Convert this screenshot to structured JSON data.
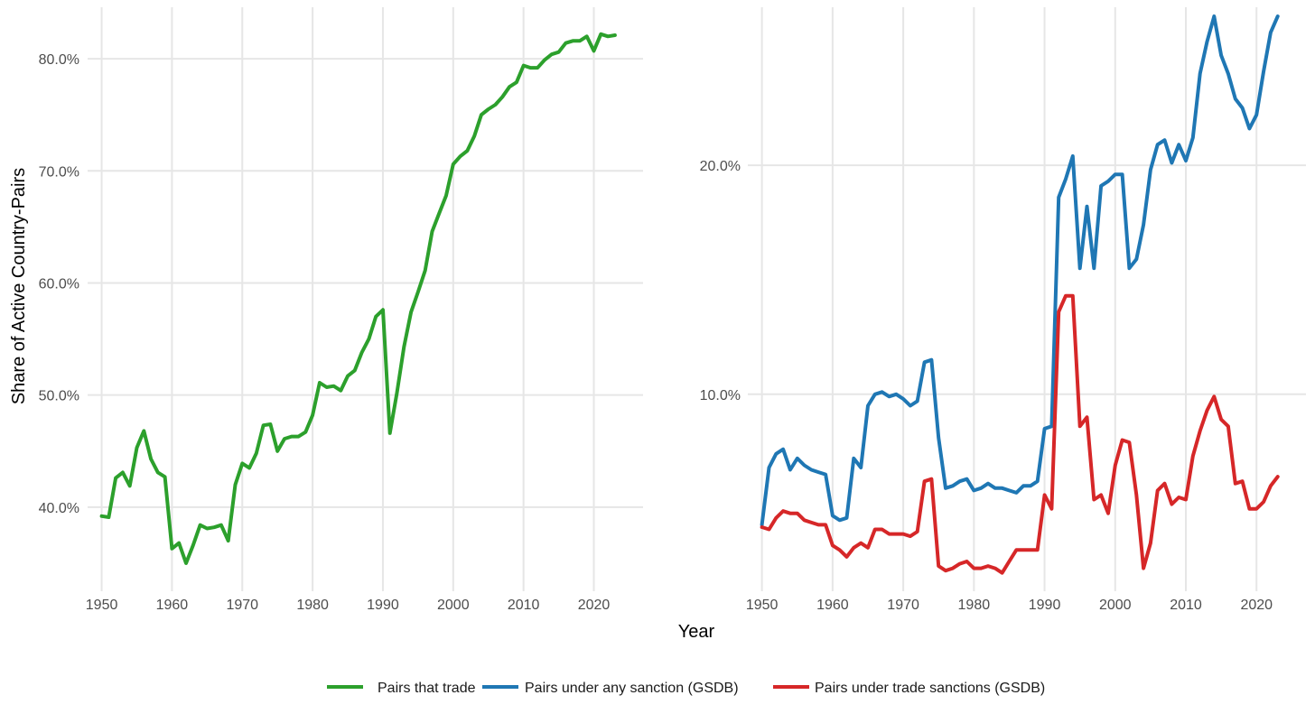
{
  "chart_data": [
    {
      "type": "line",
      "panel": "left",
      "xlabel": "Year",
      "ylabel": "Share of Active Country-Pairs",
      "xlim": [
        1948,
        2027
      ],
      "ylim": [
        32.5,
        84.6
      ],
      "x_ticks": [
        1950,
        1960,
        1970,
        1980,
        1990,
        2000,
        2010,
        2020
      ],
      "x_tick_labels": [
        "1950",
        "1960",
        "1970",
        "1980",
        "1990",
        "2000",
        "2010",
        "2020"
      ],
      "y_ticks": [
        40,
        50,
        60,
        70,
        80
      ],
      "y_tick_labels": [
        "40.0%",
        "50.0%",
        "60.0%",
        "70.0%",
        "80.0%"
      ],
      "grid": true,
      "series": [
        {
          "name": "Pairs that trade",
          "color": "#2ca02c",
          "x": [
            1950,
            1951,
            1952,
            1953,
            1954,
            1955,
            1956,
            1957,
            1958,
            1959,
            1960,
            1961,
            1962,
            1963,
            1964,
            1965,
            1966,
            1967,
            1968,
            1969,
            1970,
            1971,
            1972,
            1973,
            1974,
            1975,
            1976,
            1977,
            1978,
            1979,
            1980,
            1981,
            1982,
            1983,
            1984,
            1985,
            1986,
            1987,
            1988,
            1989,
            1990,
            1991,
            1992,
            1993,
            1994,
            1995,
            1996,
            1997,
            1998,
            1999,
            2000,
            2001,
            2002,
            2003,
            2004,
            2005,
            2006,
            2007,
            2008,
            2009,
            2010,
            2011,
            2012,
            2013,
            2014,
            2015,
            2016,
            2017,
            2018,
            2019,
            2020,
            2021,
            2022,
            2023
          ],
          "y": [
            39.2,
            39.1,
            42.6,
            43.1,
            41.9,
            45.3,
            46.8,
            44.3,
            43.1,
            42.7,
            36.3,
            36.8,
            35.0,
            36.6,
            38.4,
            38.1,
            38.2,
            38.4,
            37.0,
            42.0,
            43.9,
            43.5,
            44.8,
            47.3,
            47.4,
            45.0,
            46.1,
            46.3,
            46.3,
            46.7,
            48.2,
            51.1,
            50.7,
            50.8,
            50.4,
            51.7,
            52.2,
            53.8,
            55.0,
            57.0,
            57.6,
            46.6,
            50.2,
            54.3,
            57.4,
            59.2,
            61.1,
            64.6,
            66.2,
            67.8,
            70.6,
            71.3,
            71.8,
            73.1,
            75.0,
            75.5,
            75.9,
            76.6,
            77.5,
            77.9,
            79.4,
            79.2,
            79.2,
            79.9,
            80.4,
            80.6,
            81.4,
            81.6,
            81.6,
            82.0,
            80.7,
            82.2,
            82.0,
            82.1
          ]
        }
      ]
    },
    {
      "type": "line",
      "panel": "right",
      "xlabel": "Year",
      "ylabel": "",
      "xlim": [
        1948,
        2027
      ],
      "ylim": [
        1.4,
        26.9
      ],
      "x_ticks": [
        1950,
        1960,
        1970,
        1980,
        1990,
        2000,
        2010,
        2020
      ],
      "x_tick_labels": [
        "1950",
        "1960",
        "1970",
        "1980",
        "1990",
        "2000",
        "2010",
        "2020"
      ],
      "y_ticks": [
        10,
        20
      ],
      "y_tick_labels": [
        "10.0%",
        "20.0%"
      ],
      "grid": true,
      "series": [
        {
          "name": "Pairs under any sanction (GSDB)",
          "color": "#1f77b4",
          "x": [
            1950,
            1951,
            1952,
            1953,
            1954,
            1955,
            1956,
            1957,
            1958,
            1959,
            1960,
            1961,
            1962,
            1963,
            1964,
            1965,
            1966,
            1967,
            1968,
            1969,
            1970,
            1971,
            1972,
            1973,
            1974,
            1975,
            1976,
            1977,
            1978,
            1979,
            1980,
            1981,
            1982,
            1983,
            1984,
            1985,
            1986,
            1987,
            1988,
            1989,
            1990,
            1991,
            1992,
            1993,
            1994,
            1995,
            1996,
            1997,
            1998,
            1999,
            2000,
            2001,
            2002,
            2003,
            2004,
            2005,
            2006,
            2007,
            2008,
            2009,
            2010,
            2011,
            2012,
            2013,
            2014,
            2015,
            2016,
            2017,
            2018,
            2019,
            2020,
            2021,
            2022,
            2023
          ],
          "y": [
            4.3,
            6.8,
            7.4,
            7.6,
            6.7,
            7.2,
            6.9,
            6.7,
            6.6,
            6.5,
            4.7,
            4.5,
            4.6,
            7.2,
            6.8,
            9.5,
            10.0,
            10.1,
            9.9,
            10.0,
            9.8,
            9.5,
            9.7,
            11.4,
            11.5,
            8.1,
            5.9,
            6.0,
            6.2,
            6.3,
            5.8,
            5.9,
            6.1,
            5.9,
            5.9,
            5.8,
            5.7,
            6.0,
            6.0,
            6.2,
            8.5,
            8.6,
            18.6,
            19.4,
            20.4,
            15.5,
            18.2,
            15.5,
            19.1,
            19.3,
            19.6,
            19.6,
            15.5,
            15.9,
            17.4,
            19.8,
            20.9,
            21.1,
            20.1,
            20.9,
            20.2,
            21.2,
            24.0,
            25.4,
            26.5,
            24.8,
            24.0,
            22.9,
            22.5,
            21.6,
            22.2,
            24.1,
            25.8,
            26.5
          ]
        },
        {
          "name": "Pairs under trade sanctions (GSDB)",
          "color": "#d62728",
          "x": [
            1950,
            1951,
            1952,
            1953,
            1954,
            1955,
            1956,
            1957,
            1958,
            1959,
            1960,
            1961,
            1962,
            1963,
            1964,
            1965,
            1966,
            1967,
            1968,
            1969,
            1970,
            1971,
            1972,
            1973,
            1974,
            1975,
            1976,
            1977,
            1978,
            1979,
            1980,
            1981,
            1982,
            1983,
            1984,
            1985,
            1986,
            1987,
            1988,
            1989,
            1990,
            1991,
            1992,
            1993,
            1994,
            1995,
            1996,
            1997,
            1998,
            1999,
            2000,
            2001,
            2002,
            2003,
            2004,
            2005,
            2006,
            2007,
            2008,
            2009,
            2010,
            2011,
            2012,
            2013,
            2014,
            2015,
            2016,
            2017,
            2018,
            2019,
            2020,
            2021,
            2022,
            2023
          ],
          "y": [
            4.2,
            4.1,
            4.6,
            4.9,
            4.8,
            4.8,
            4.5,
            4.4,
            4.3,
            4.3,
            3.4,
            3.2,
            2.9,
            3.3,
            3.5,
            3.3,
            4.1,
            4.1,
            3.9,
            3.9,
            3.9,
            3.8,
            4.0,
            6.2,
            6.3,
            2.5,
            2.3,
            2.4,
            2.6,
            2.7,
            2.4,
            2.4,
            2.5,
            2.4,
            2.2,
            2.7,
            3.2,
            3.2,
            3.2,
            3.2,
            5.6,
            5.0,
            13.6,
            14.3,
            14.3,
            8.6,
            9.0,
            5.4,
            5.6,
            4.8,
            6.9,
            8.0,
            7.9,
            5.6,
            2.4,
            3.5,
            5.8,
            6.1,
            5.2,
            5.5,
            5.4,
            7.3,
            8.4,
            9.3,
            9.9,
            8.9,
            8.6,
            6.1,
            6.2,
            5.0,
            5.0,
            5.3,
            6.0,
            6.4
          ]
        }
      ]
    }
  ],
  "legend": {
    "placement": "bottom",
    "items": [
      {
        "label": "Pairs that trade",
        "color": "#2ca02c"
      },
      {
        "label": "Pairs under any sanction (GSDB)",
        "color": "#1f77b4"
      },
      {
        "label": "Pairs under trade sanctions (GSDB)",
        "color": "#d62728"
      }
    ]
  },
  "shared_xlabel": "Year"
}
